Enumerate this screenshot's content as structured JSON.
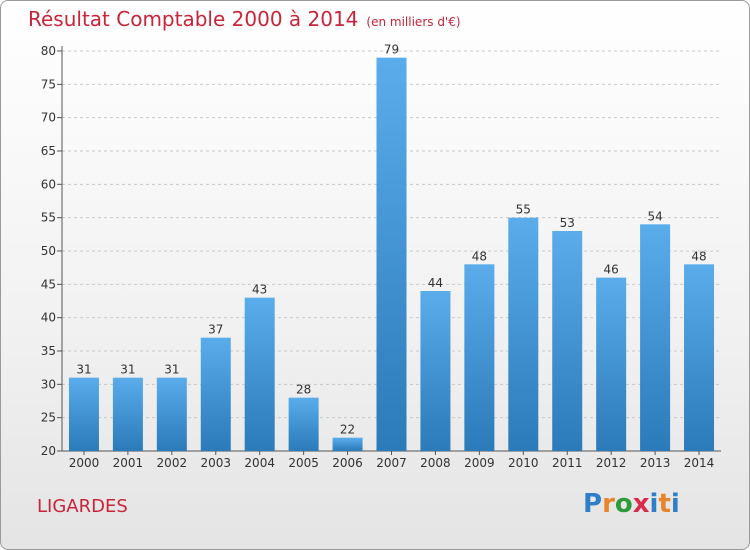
{
  "header": {
    "title": "Résultat Comptable 2000 à 2014",
    "subtitle": "(en milliers d'€)"
  },
  "footer": {
    "commune": "LIGARDES",
    "logo": [
      "P",
      "r",
      "o",
      "x",
      "i",
      "t",
      "i"
    ]
  },
  "colors": {
    "title": "#c8243a",
    "bar_top": "#5aaceb",
    "bar_bottom": "#2b7ab9"
  },
  "chart_data": {
    "type": "bar",
    "title": "Résultat Comptable 2000 à 2014",
    "subtitle": "(en milliers d'€)",
    "categories": [
      "2000",
      "2001",
      "2002",
      "2003",
      "2004",
      "2005",
      "2006",
      "2007",
      "2008",
      "2009",
      "2010",
      "2011",
      "2012",
      "2013",
      "2014"
    ],
    "values": [
      31,
      31,
      31,
      37,
      43,
      28,
      22,
      79,
      44,
      48,
      55,
      53,
      46,
      54,
      48
    ],
    "ylim": [
      20,
      80
    ],
    "yticks": [
      20,
      25,
      30,
      35,
      40,
      45,
      50,
      55,
      60,
      65,
      70,
      75,
      80
    ],
    "grid": true,
    "legend": "none"
  }
}
